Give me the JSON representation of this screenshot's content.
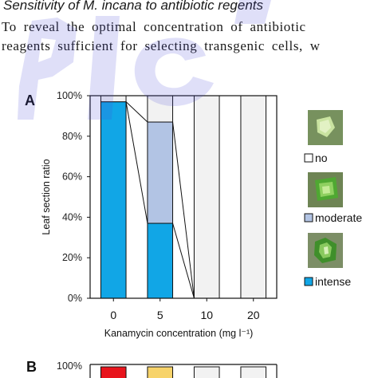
{
  "text": {
    "heading": "Sensitivity of M. incana to antibiotic regents",
    "line1": "To reveal the optimal concentration of antibiotic",
    "line2": "reagents sufficient for selecting transgenic cells, w"
  },
  "chart_data": [
    {
      "panel": "A",
      "type": "bar",
      "stacked": true,
      "categories": [
        "0",
        "5",
        "10",
        "20"
      ],
      "series": [
        {
          "name": "intense",
          "color": "#11a6e6",
          "values": [
            97,
            37,
            0,
            0
          ]
        },
        {
          "name": "moderate",
          "color": "#b2c4e4",
          "values": [
            0,
            50,
            0,
            0
          ]
        },
        {
          "name": "no",
          "color": "#f2f2f2",
          "values": [
            3,
            13,
            100,
            100
          ]
        }
      ],
      "xlabel": "Kanamycin concentration (mg l⁻¹)",
      "ylabel": "Leaf section ratio",
      "ylim": [
        0,
        100
      ],
      "yticks": [
        "0%",
        "20%",
        "40%",
        "60%",
        "80%",
        "100%"
      ],
      "legend_placement": "right",
      "legend": [
        {
          "label": "no",
          "color": "#ffffff",
          "icon": "leaf-no-response-photo"
        },
        {
          "label": "moderate",
          "color": "#b2c4e4",
          "icon": "leaf-moderate-response-photo"
        },
        {
          "label": "intense",
          "color": "#11a6e6",
          "icon": "leaf-intense-response-photo"
        }
      ]
    },
    {
      "panel": "B",
      "type": "bar",
      "stacked": true,
      "yticks": [
        "100%"
      ],
      "series_colors": [
        "#e8141c",
        "#f7d36a",
        "#f2f2f2"
      ]
    }
  ]
}
